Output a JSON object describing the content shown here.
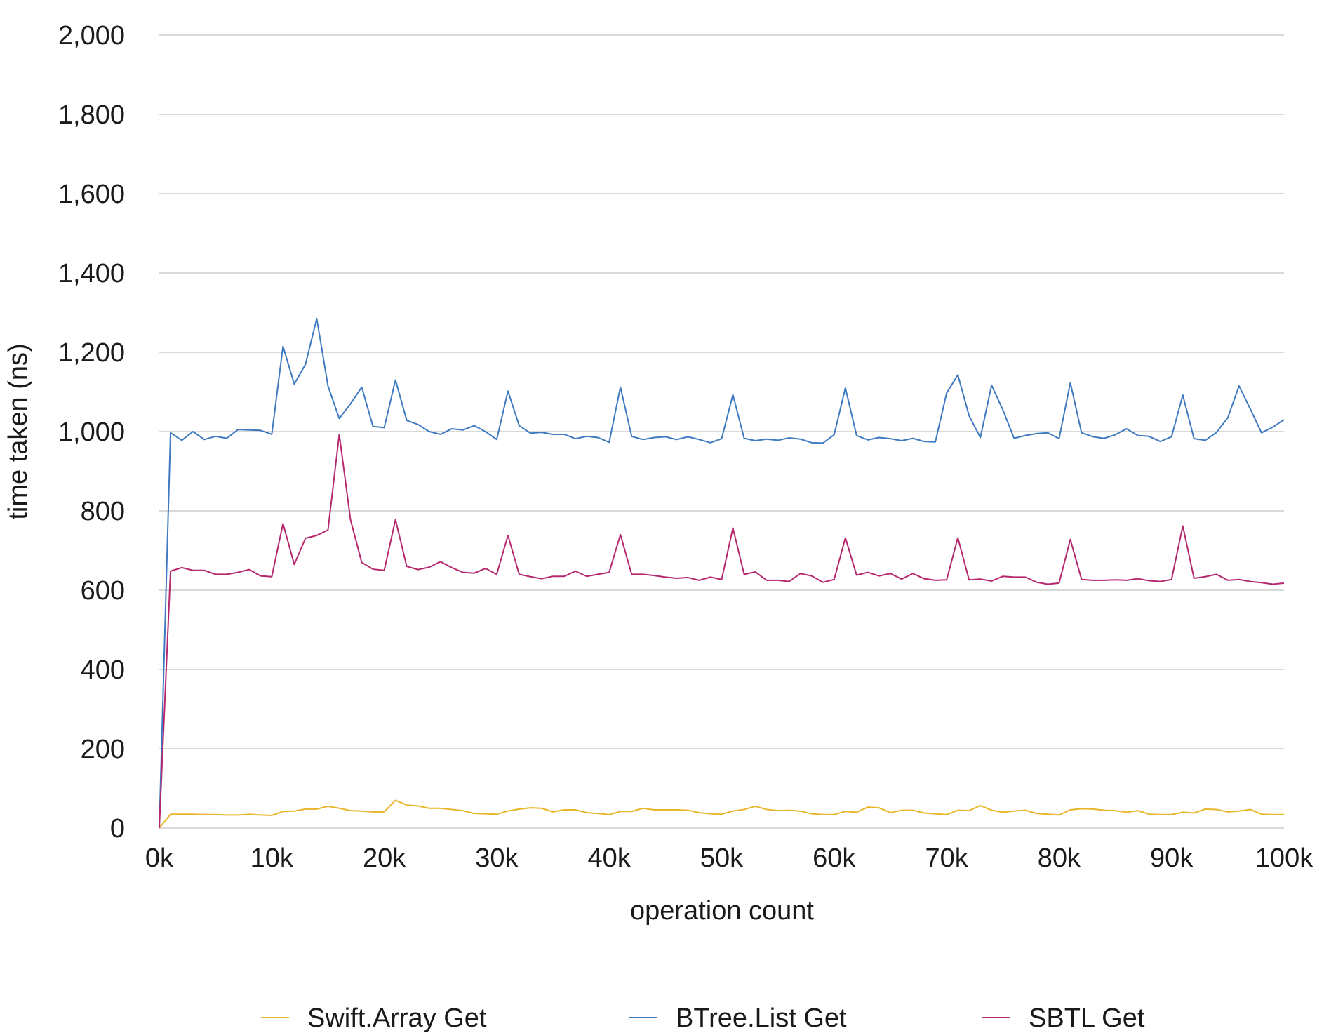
{
  "chart_data": {
    "type": "line",
    "title": "",
    "xlabel": "operation count",
    "ylabel": "time taken (ns)",
    "xlim": [
      0,
      100000
    ],
    "ylim": [
      0,
      2000
    ],
    "x_ticks": [
      {
        "value": 0,
        "label": "0k"
      },
      {
        "value": 10000,
        "label": "10k"
      },
      {
        "value": 20000,
        "label": "20k"
      },
      {
        "value": 30000,
        "label": "30k"
      },
      {
        "value": 40000,
        "label": "40k"
      },
      {
        "value": 50000,
        "label": "50k"
      },
      {
        "value": 60000,
        "label": "60k"
      },
      {
        "value": 70000,
        "label": "70k"
      },
      {
        "value": 80000,
        "label": "80k"
      },
      {
        "value": 90000,
        "label": "90k"
      },
      {
        "value": 100000,
        "label": "100k"
      }
    ],
    "y_ticks": [
      {
        "value": 0,
        "label": "0"
      },
      {
        "value": 200,
        "label": "200"
      },
      {
        "value": 400,
        "label": "400"
      },
      {
        "value": 600,
        "label": "600"
      },
      {
        "value": 800,
        "label": "800"
      },
      {
        "value": 1000,
        "label": "1,000"
      },
      {
        "value": 1200,
        "label": "1,200"
      },
      {
        "value": 1400,
        "label": "1,400"
      },
      {
        "value": 1600,
        "label": "1,600"
      },
      {
        "value": 1800,
        "label": "1,800"
      },
      {
        "value": 2000,
        "label": "2,000"
      }
    ],
    "grid": "horizontal",
    "legend_position": "bottom",
    "x": [
      0,
      1000,
      2000,
      3000,
      4000,
      5000,
      6000,
      7000,
      8000,
      9000,
      10000,
      11000,
      12000,
      13000,
      14000,
      15000,
      16000,
      17000,
      18000,
      19000,
      20000,
      21000,
      22000,
      23000,
      24000,
      25000,
      26000,
      27000,
      28000,
      29000,
      30000,
      31000,
      32000,
      33000,
      34000,
      35000,
      36000,
      37000,
      38000,
      39000,
      40000,
      41000,
      42000,
      43000,
      44000,
      45000,
      46000,
      47000,
      48000,
      49000,
      50000,
      51000,
      52000,
      53000,
      54000,
      55000,
      56000,
      57000,
      58000,
      59000,
      60000,
      61000,
      62000,
      63000,
      64000,
      65000,
      66000,
      67000,
      68000,
      69000,
      70000,
      71000,
      72000,
      73000,
      74000,
      75000,
      76000,
      77000,
      78000,
      79000,
      80000,
      81000,
      82000,
      83000,
      84000,
      85000,
      86000,
      87000,
      88000,
      89000,
      90000,
      91000,
      92000,
      93000,
      94000,
      95000,
      96000,
      97000,
      98000,
      99000,
      100000
    ],
    "series": [
      {
        "name": "Swift.Array Get",
        "color": "#E8B62A",
        "values": [
          0,
          35,
          35,
          35,
          34,
          34,
          33,
          33,
          35,
          33,
          32,
          42,
          43,
          48,
          48,
          55,
          50,
          44,
          43,
          41,
          41,
          70,
          58,
          56,
          50,
          50,
          47,
          44,
          37,
          36,
          35,
          43,
          48,
          51,
          50,
          41,
          46,
          46,
          39,
          37,
          34,
          42,
          42,
          50,
          46,
          46,
          46,
          45,
          39,
          36,
          35,
          43,
          47,
          55,
          47,
          44,
          45,
          43,
          36,
          34,
          34,
          42,
          40,
          53,
          51,
          39,
          45,
          45,
          38,
          36,
          34,
          45,
          44,
          57,
          45,
          40,
          43,
          45,
          37,
          35,
          33,
          46,
          49,
          48,
          45,
          44,
          40,
          44,
          35,
          34,
          34,
          40,
          38,
          48,
          47,
          41,
          43,
          47,
          35,
          34,
          34
        ]
      },
      {
        "name": "BTree.List Get",
        "color": "#3F7AC0",
        "values": [
          0,
          997,
          978,
          1000,
          980,
          988,
          983,
          1005,
          1004,
          1003,
          993,
          1215,
          1120,
          1170,
          1285,
          1115,
          1033,
          1070,
          1112,
          1013,
          1010,
          1130,
          1028,
          1018,
          1000,
          993,
          1007,
          1004,
          1015,
          1000,
          980,
          1102,
          1015,
          996,
          998,
          993,
          993,
          982,
          988,
          985,
          973,
          1112,
          988,
          980,
          985,
          987,
          980,
          987,
          980,
          972,
          982,
          1093,
          983,
          977,
          981,
          978,
          984,
          981,
          972,
          971,
          992,
          1110,
          990,
          979,
          985,
          982,
          977,
          983,
          975,
          974,
          1097,
          1143,
          1040,
          985,
          1117,
          1055,
          983,
          990,
          995,
          997,
          982,
          1123,
          997,
          987,
          983,
          992,
          1007,
          990,
          988,
          975,
          987,
          1092,
          982,
          978,
          998,
          1035,
          1115,
          1057,
          997,
          1011,
          1030
        ]
      },
      {
        "name": "SBTL Get",
        "color": "#B5286E",
        "values": [
          0,
          648,
          657,
          650,
          650,
          640,
          640,
          645,
          652,
          636,
          634,
          768,
          665,
          731,
          738,
          752,
          993,
          778,
          670,
          653,
          650,
          778,
          660,
          652,
          658,
          672,
          657,
          645,
          643,
          655,
          640,
          738,
          640,
          634,
          629,
          635,
          635,
          648,
          635,
          640,
          645,
          740,
          640,
          640,
          637,
          633,
          630,
          632,
          625,
          633,
          627,
          757,
          640,
          646,
          625,
          625,
          622,
          642,
          636,
          620,
          627,
          732,
          638,
          645,
          636,
          642,
          628,
          642,
          629,
          625,
          626,
          732,
          626,
          628,
          623,
          635,
          633,
          633,
          620,
          615,
          618,
          728,
          627,
          625,
          625,
          626,
          625,
          629,
          624,
          622,
          627,
          762,
          630,
          634,
          640,
          625,
          627,
          622,
          619,
          615,
          618
        ]
      }
    ]
  }
}
